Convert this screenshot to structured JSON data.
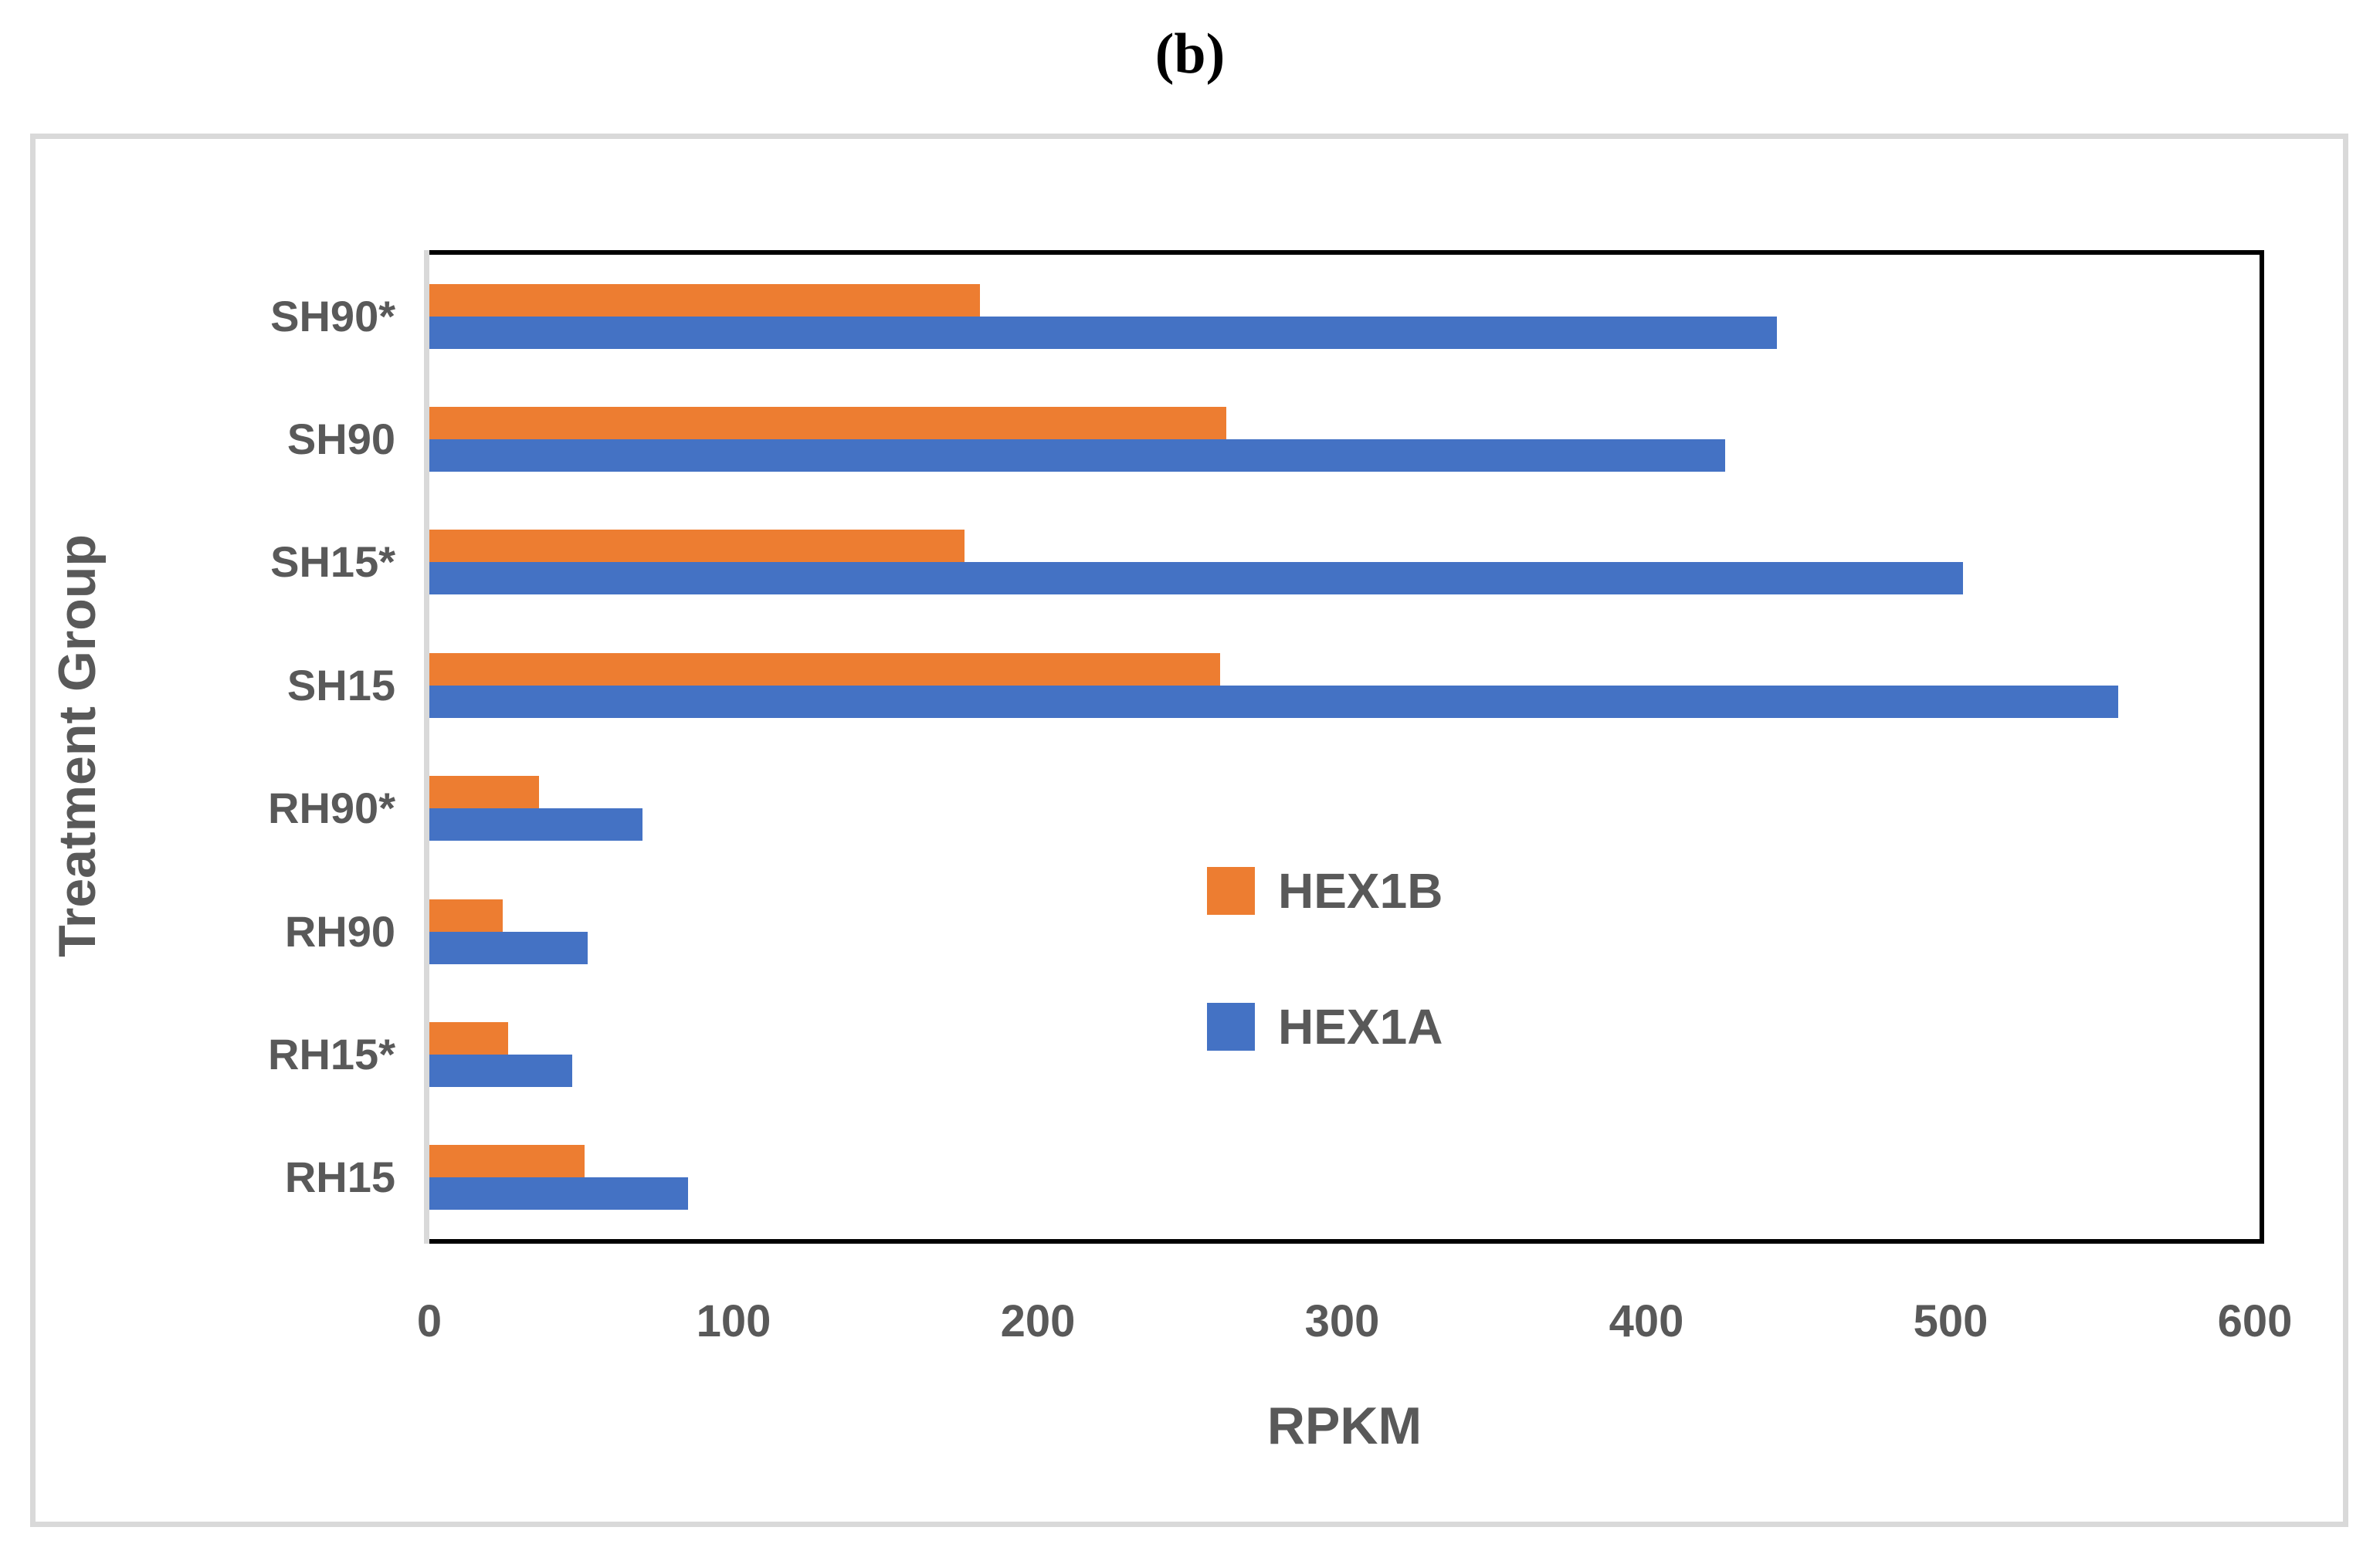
{
  "figure_label": "(b)",
  "chart_data": {
    "type": "bar",
    "orientation": "horizontal",
    "title": "(b)",
    "xlabel": "RPKM",
    "ylabel": "Treatment Group",
    "xlim": [
      0,
      600
    ],
    "x_ticks": [
      "0",
      "100",
      "200",
      "300",
      "400",
      "500",
      "600"
    ],
    "grid": false,
    "legend_position": "center-right",
    "categories": [
      "SH90*",
      "SH90",
      "SH15*",
      "SH15",
      "RH90*",
      "RH90",
      "RH15*",
      "RH15"
    ],
    "series": [
      {
        "name": "HEX1B",
        "color": "#ED7D31",
        "values": [
          181,
          262,
          176,
          260,
          36,
          24,
          26,
          51
        ]
      },
      {
        "name": "HEX1A",
        "color": "#4472C4",
        "values": [
          443,
          426,
          504,
          555,
          70,
          52,
          47,
          85
        ]
      }
    ]
  },
  "colors": {
    "text": "#595959",
    "axis_line": "#000000",
    "frame_border": "#D9D9D9",
    "background": "#FFFFFF"
  }
}
